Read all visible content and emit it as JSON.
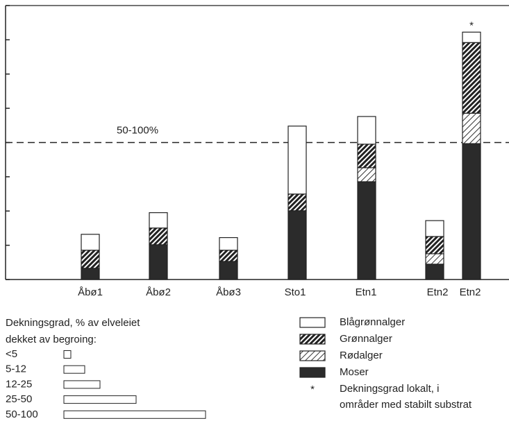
{
  "chart_data": {
    "type": "stacked_bar",
    "categories": [
      "Åbø1",
      "Åbø2",
      "Åbø3",
      "Sto1",
      "Etn1",
      "Etn2",
      "Etn2"
    ],
    "series": [
      {
        "name": "Moser",
        "color": "#2b2b2b",
        "hatch": null,
        "values": [
          4.1,
          12.7,
          6.6,
          25.1,
          35.7,
          5.6,
          49.6
        ]
      },
      {
        "name": "Rødalger",
        "color": "#ffffff",
        "hatch": "light",
        "values": [
          0,
          0,
          0,
          0,
          5.1,
          3.8,
          11.1
        ]
      },
      {
        "name": "Grønnalger",
        "color": "#ffffff",
        "hatch": "dense",
        "values": [
          6.6,
          6.1,
          4.1,
          6.1,
          8.6,
          6.3,
          25.8
        ]
      },
      {
        "name": "Blågrønnalger",
        "color": "#ffffff",
        "hatch": null,
        "values": [
          5.8,
          5.6,
          4.6,
          24.8,
          10.1,
          5.8,
          3.8
        ]
      }
    ],
    "ylim": [
      0,
      100
    ],
    "yticks": [
      0,
      12.5,
      25,
      37.5,
      50,
      62.5,
      75,
      87.5,
      100
    ],
    "threshold": {
      "value": 50,
      "label": "50-100%"
    },
    "footnote_symbol": "*",
    "footnote": [
      "Dekningsgrad lokalt, i",
      "områder med stabilt substrat"
    ],
    "size_legend": {
      "title": [
        "Dekningsgrad, % av elveleiet",
        "dekket av begroing:"
      ],
      "classes": [
        "<5",
        "5-12",
        "12-25",
        "25-50",
        "50-100"
      ]
    }
  }
}
